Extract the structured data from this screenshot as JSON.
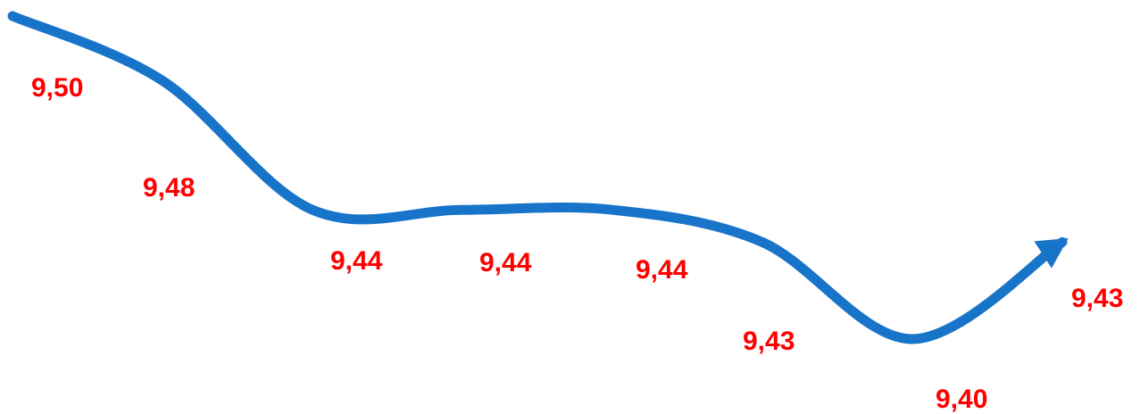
{
  "chart_data": {
    "type": "line",
    "title": "",
    "xlabel": "",
    "ylabel": "",
    "x": [
      1,
      2,
      3,
      4,
      5,
      6,
      7,
      8
    ],
    "series": [
      {
        "values": [
          9.5,
          9.48,
          9.44,
          9.44,
          9.44,
          9.43,
          9.4,
          9.43
        ],
        "labels": [
          "9,50",
          "9,48",
          "9,44",
          "9,44",
          "9,44",
          "9,43",
          "9,40",
          "9,43"
        ]
      }
    ],
    "axes_visible": false,
    "grid": false,
    "legend": "none",
    "line_color": "#1874C9",
    "label_color": "#FF0000",
    "end_marker": "arrow"
  }
}
